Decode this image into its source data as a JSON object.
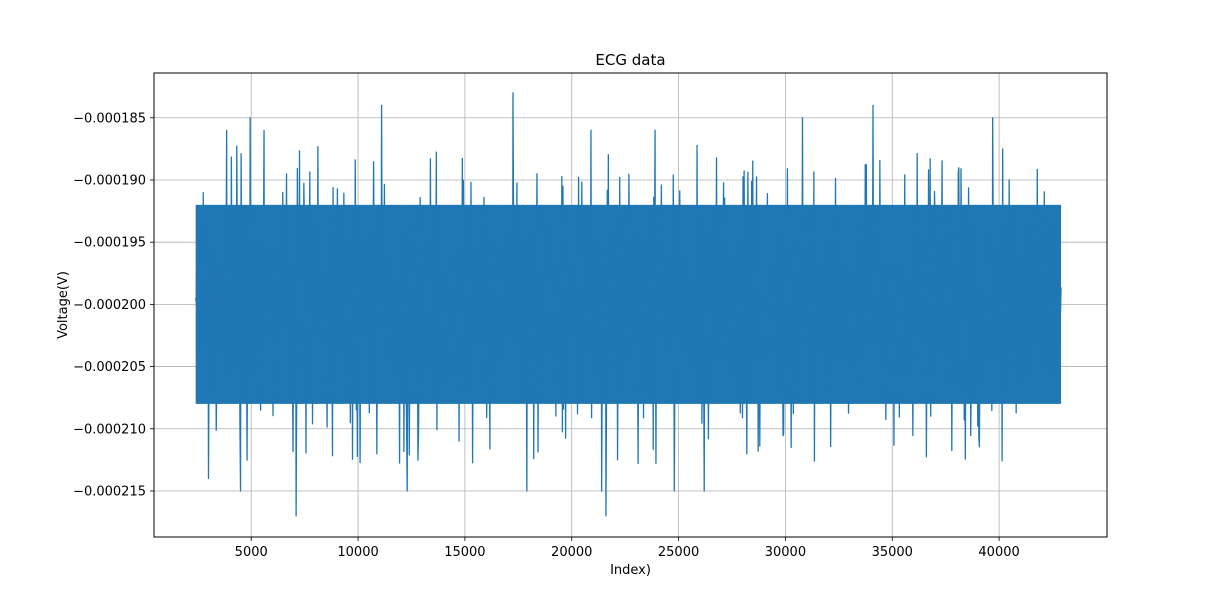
{
  "chart_data": {
    "type": "line",
    "title": "ECG data",
    "xlabel": "Index)",
    "ylabel": "Voltage(V)",
    "xlim": [
      450,
      45050
    ],
    "ylim": [
      -0.0002187,
      -0.0001814
    ],
    "x_ticks": [
      5000,
      10000,
      15000,
      20000,
      25000,
      30000,
      35000,
      40000
    ],
    "x_tick_labels": [
      "5000",
      "10000",
      "15000",
      "20000",
      "25000",
      "30000",
      "35000",
      "40000"
    ],
    "y_ticks": [
      -0.000185,
      -0.00019,
      -0.000195,
      -0.0002,
      -0.000205,
      -0.00021,
      -0.000215
    ],
    "y_tick_labels": [
      "−0.000185",
      "−0.000190",
      "−0.000195",
      "−0.000200",
      "−0.000205",
      "−0.000210",
      "−0.000215"
    ],
    "grid": true,
    "series": [
      {
        "color": "#1f77b4",
        "x_start": 2400,
        "x_end": 42900,
        "typical_range": [
          -0.000208,
          -0.000192
        ],
        "min": -0.000217,
        "max": -0.000183,
        "peaks": [
          {
            "x": 4950,
            "y": -0.000185
          },
          {
            "x": 11100,
            "y": -0.000184
          },
          {
            "x": 17250,
            "y": -0.000183
          },
          {
            "x": 30800,
            "y": -0.000185
          },
          {
            "x": 34100,
            "y": -0.000184
          },
          {
            "x": 39700,
            "y": -0.000185
          },
          {
            "x": 3850,
            "y": -0.000186
          },
          {
            "x": 5600,
            "y": -0.000186
          },
          {
            "x": 20900,
            "y": -0.000186
          },
          {
            "x": 23900,
            "y": -0.000186
          }
        ],
        "troughs": [
          {
            "x": 7100,
            "y": -0.000217
          },
          {
            "x": 21600,
            "y": -0.000217
          },
          {
            "x": 12300,
            "y": -0.000215
          },
          {
            "x": 4500,
            "y": -0.000215
          },
          {
            "x": 17900,
            "y": -0.000215
          },
          {
            "x": 21400,
            "y": -0.000215
          },
          {
            "x": 26200,
            "y": -0.000215
          },
          {
            "x": 24800,
            "y": -0.000215
          },
          {
            "x": 3000,
            "y": -0.000214
          }
        ]
      }
    ]
  }
}
